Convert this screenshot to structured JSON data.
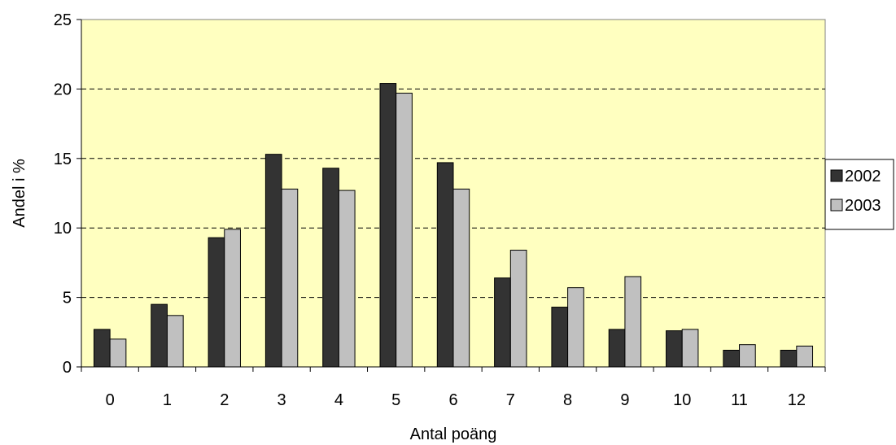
{
  "chart_data": {
    "type": "bar",
    "title": "",
    "xlabel": "Antal poäng",
    "ylabel": "Andel i %",
    "categories": [
      "0",
      "1",
      "2",
      "3",
      "4",
      "5",
      "6",
      "7",
      "8",
      "9",
      "10",
      "11",
      "12"
    ],
    "series": [
      {
        "name": "2002",
        "color": "#333333",
        "values": [
          2.7,
          4.5,
          9.3,
          15.3,
          14.3,
          20.4,
          14.7,
          6.4,
          4.3,
          2.7,
          2.6,
          1.2,
          1.2
        ]
      },
      {
        "name": "2003",
        "color": "#c0c0c0",
        "values": [
          2.0,
          3.7,
          9.9,
          12.8,
          12.7,
          19.7,
          12.8,
          8.4,
          5.7,
          6.5,
          2.7,
          1.6,
          1.5
        ]
      }
    ],
    "ylim": [
      0,
      25
    ],
    "yticks": [
      "0",
      "5",
      "10",
      "15",
      "20",
      "25"
    ],
    "grid": true,
    "legend_position": "right",
    "plot_background": "#ffffc0"
  }
}
